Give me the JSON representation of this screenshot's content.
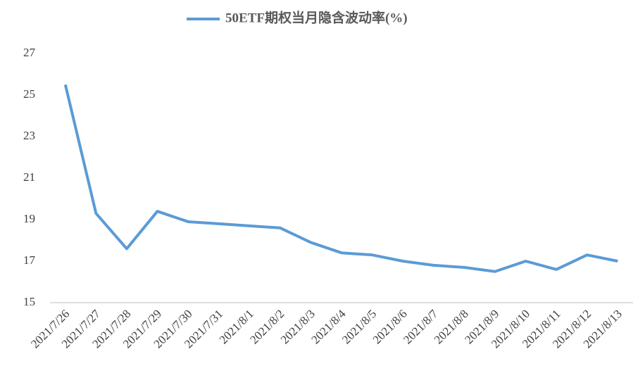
{
  "chart_data": {
    "type": "line",
    "categories": [
      "2021/7/26",
      "2021/7/27",
      "2021/7/28",
      "2021/7/29",
      "2021/7/30",
      "2021/7/31",
      "2021/8/1",
      "2021/8/2",
      "2021/8/3",
      "2021/8/4",
      "2021/8/5",
      "2021/8/6",
      "2021/8/7",
      "2021/8/8",
      "2021/8/9",
      "2021/8/10",
      "2021/8/11",
      "2021/8/12",
      "2021/8/13"
    ],
    "series": [
      {
        "name": "50ETF期权当月隐含波动率(%)",
        "color": "#5b9bd5",
        "values": [
          25.5,
          19.3,
          17.6,
          19.4,
          18.9,
          18.8,
          18.7,
          18.6,
          17.9,
          17.4,
          17.3,
          17.0,
          16.8,
          16.7,
          16.5,
          17.0,
          16.6,
          17.3,
          17.0
        ]
      }
    ],
    "ylim": [
      15,
      27
    ],
    "yticks": [
      15,
      17,
      19,
      21,
      23,
      25,
      27
    ],
    "grid": false,
    "legend": "top"
  }
}
